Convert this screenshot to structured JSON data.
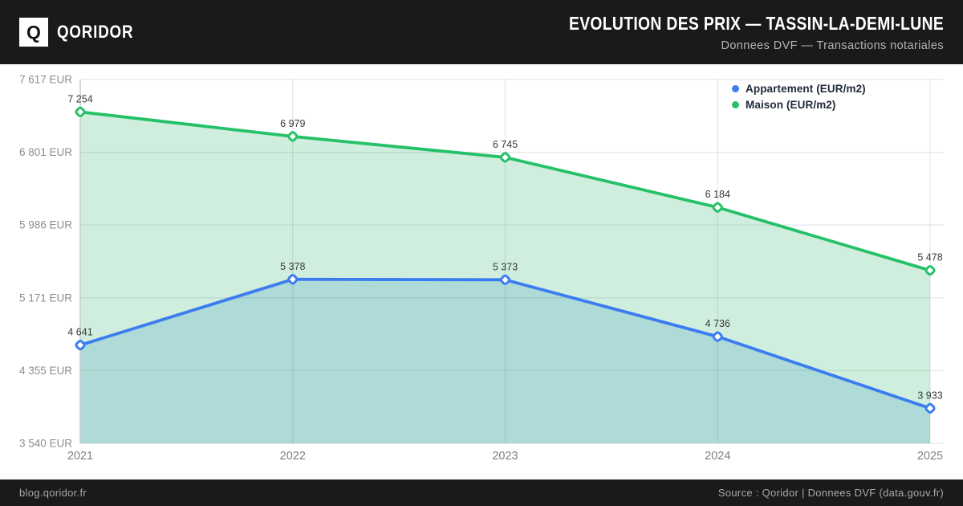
{
  "header": {
    "logo_letter": "Q",
    "brand": "QORIDOR",
    "title": "EVOLUTION DES PRIX — TASSIN-LA-DEMI-LUNE",
    "subtitle": "Donnees DVF — Transactions notariales"
  },
  "footer": {
    "left": "blog.qoridor.fr",
    "right": "Source : Qoridor | Donnees DVF (data.gouv.fr)"
  },
  "chart_data": {
    "type": "line",
    "title": "Evolution des prix — Tassin-la-Demi-Lune",
    "x": [
      "2021",
      "2022",
      "2023",
      "2024",
      "2025"
    ],
    "series": [
      {
        "name": "Appartement (EUR/m2)",
        "color": "#3b7df0",
        "fill": "#aedbd8",
        "values": [
          4641,
          5378,
          5373,
          4736,
          3933
        ]
      },
      {
        "name": "Maison (EUR/m2)",
        "color": "#25c168",
        "fill": "#d0eedd",
        "values": [
          7254,
          6979,
          6745,
          6184,
          5478
        ]
      }
    ],
    "y_ticks": [
      7617,
      6801,
      5986,
      5171,
      4355,
      3540
    ],
    "y_tick_suffix": " EUR",
    "ylim": [
      3540,
      7617
    ],
    "grid": true,
    "area_fill": true,
    "legend_position": "top-right",
    "text_colors": {
      "tick_label": "#8d8d8d",
      "year_label": "#7f7f7f",
      "point_label": "#3a3a3a"
    },
    "grid_color": "rgba(40,80,60,0.12)",
    "spine_color": "#c9cdcb"
  }
}
